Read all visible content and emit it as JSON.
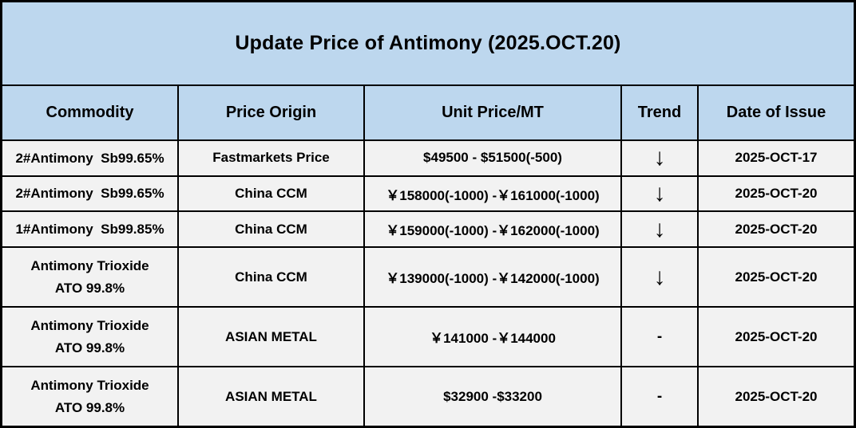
{
  "title": "Update Price of Antimony (2025.OCT.20)",
  "colors": {
    "header_bg": "#BDD7EE",
    "row_bg": "#F2F2F2",
    "border": "#000000",
    "text": "#000000"
  },
  "chart_data": {
    "type": "table",
    "title": "Update Price of Antimony (2025.OCT.20)",
    "columns": [
      "Commodity",
      "Price Origin",
      "Unit Price/MT",
      "Trend",
      "Date of Issue"
    ],
    "rows": [
      {
        "commodity": "2#Antimony  Sb99.65%",
        "origin": "Fastmarkets Price",
        "price": "$49500 - $51500(-500)",
        "trend": "↓",
        "date": "2025-OCT-17"
      },
      {
        "commodity": "2#Antimony  Sb99.65%",
        "origin": "China CCM",
        "price": "￥158000(-1000) -￥161000(-1000)",
        "trend": "↓",
        "date": "2025-OCT-20"
      },
      {
        "commodity": "1#Antimony  Sb99.85%",
        "origin": "China CCM",
        "price": "￥159000(-1000) -￥162000(-1000)",
        "trend": "↓",
        "date": "2025-OCT-20"
      },
      {
        "commodity": "Antimony Trioxide\nATO 99.8%",
        "origin": "China CCM",
        "price": "￥139000(-1000) -￥142000(-1000)",
        "trend": "↓",
        "date": "2025-OCT-20"
      },
      {
        "commodity": "Antimony Trioxide\nATO 99.8%",
        "origin": "ASIAN METAL",
        "price": "￥141000 -￥144000",
        "trend": "-",
        "date": "2025-OCT-20"
      },
      {
        "commodity": "Antimony Trioxide\nATO 99.8%",
        "origin": "ASIAN METAL",
        "price": "$32900 -$33200",
        "trend": "-",
        "date": "2025-OCT-20"
      }
    ]
  }
}
